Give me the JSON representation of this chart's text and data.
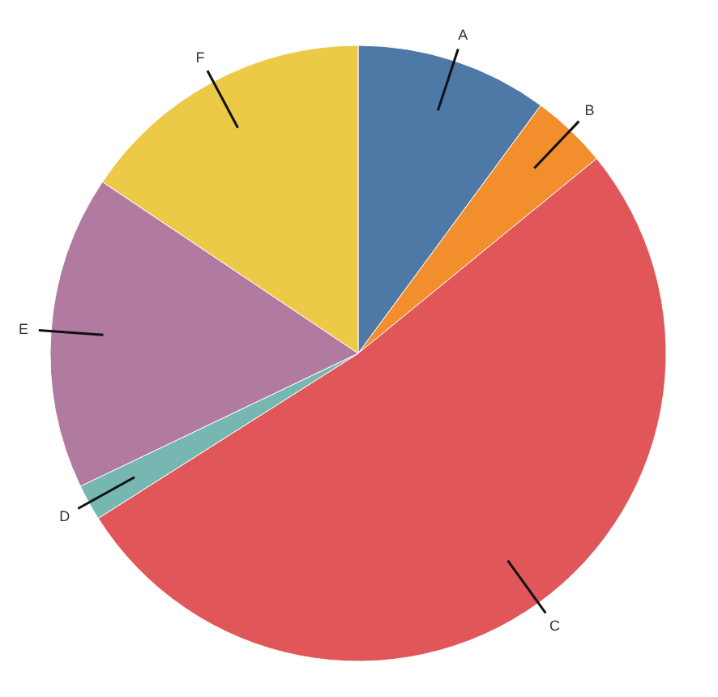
{
  "chart_data": {
    "type": "pie",
    "categories": [
      "A",
      "B",
      "C",
      "D",
      "E",
      "F"
    ],
    "values": [
      10.1,
      4.0,
      51.9,
      1.9,
      16.5,
      15.6
    ],
    "colors": [
      "#4e79a7",
      "#f28e2b",
      "#e15759",
      "#76b7b2",
      "#b07aa1",
      "#edc948"
    ]
  }
}
